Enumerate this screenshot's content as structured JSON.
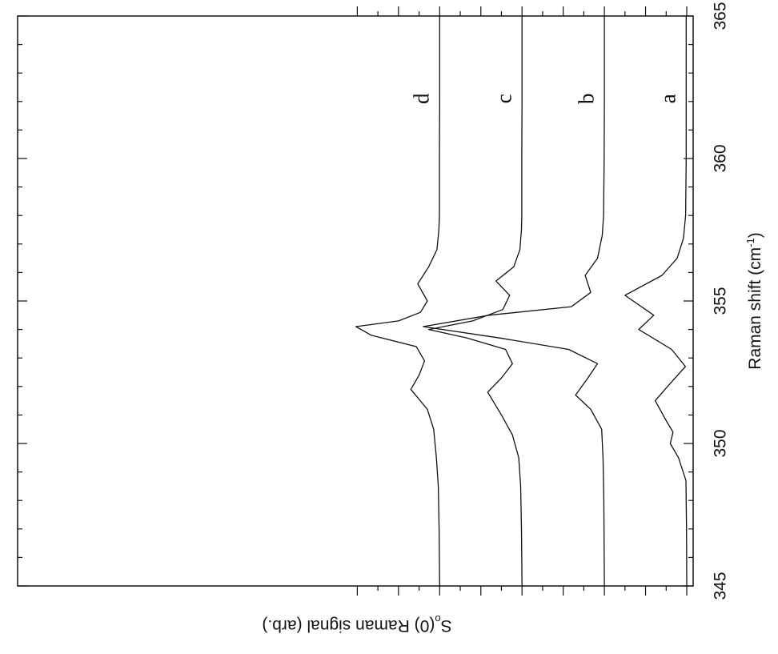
{
  "chart_data": {
    "type": "line",
    "xlabel": "Raman shift (cm-1)",
    "xlabel_main": "Raman shift (cm",
    "xlabel_sup": "-1",
    "xlabel_end": ")",
    "ylabel": "So(0) Raman signal (arb.)",
    "ylabel_main": "S",
    "ylabel_sub": "o",
    "ylabel_mid": "(0) Raman signal (arb.)",
    "xlim": [
      345,
      365
    ],
    "x_ticks": [
      "345",
      "350",
      "355",
      "360",
      "365"
    ],
    "grid": false,
    "orientation": "rotated 90 degrees clockwise",
    "series": [
      {
        "name": "a",
        "x": [
          345,
          347,
          348.7,
          349.5,
          350.0,
          350.4,
          350.8,
          351.5,
          352.0,
          352.7,
          353.3,
          354.0,
          354.5,
          355.2,
          355.9,
          356.5,
          357.2,
          358,
          360,
          362,
          365
        ],
        "y": [
          0,
          0.01,
          0.03,
          0.3,
          0.6,
          0.5,
          0.75,
          1.15,
          0.7,
          0.05,
          0.55,
          1.75,
          1.2,
          2.25,
          0.9,
          0.35,
          0.12,
          0.04,
          0.02,
          0.02,
          0.02
        ]
      },
      {
        "name": "b",
        "x": [
          345,
          348,
          349.5,
          350.5,
          351.2,
          351.7,
          352.3,
          352.8,
          353.3,
          353.7,
          354.1,
          354.5,
          354.8,
          355.3,
          355.9,
          356.5,
          357.3,
          358,
          360,
          362,
          365
        ],
        "y": [
          3.0,
          3.02,
          3.05,
          3.1,
          3.5,
          4.05,
          3.6,
          3.25,
          4.3,
          6.8,
          9.6,
          7.2,
          4.2,
          3.5,
          3.7,
          3.25,
          3.08,
          3.03,
          3.01,
          3.0,
          3.0
        ]
      },
      {
        "name": "c",
        "x": [
          345,
          347,
          348.5,
          349.5,
          350.3,
          351.0,
          351.8,
          352.3,
          352.8,
          353.3,
          353.7,
          354.0,
          354.3,
          354.7,
          355.2,
          355.7,
          356.2,
          356.8,
          357.5,
          358,
          360,
          362,
          365
        ],
        "y": [
          6.0,
          6.02,
          6.05,
          6.12,
          6.35,
          6.75,
          7.25,
          6.75,
          6.35,
          6.6,
          8.0,
          9.4,
          7.8,
          6.7,
          6.45,
          6.95,
          6.3,
          6.08,
          6.02,
          6.01,
          6.01,
          6.0,
          6.0
        ]
      },
      {
        "name": "d",
        "x": [
          345,
          347,
          348.5,
          349.5,
          350.5,
          351.2,
          351.9,
          352.4,
          352.9,
          353.4,
          353.8,
          354.1,
          354.3,
          354.6,
          355.0,
          355.6,
          356.2,
          356.8,
          357.5,
          358,
          360,
          362,
          365
        ],
        "y": [
          9.0,
          9.02,
          9.05,
          9.12,
          9.22,
          9.45,
          10.05,
          9.75,
          9.55,
          9.85,
          11.5,
          12.05,
          10.5,
          9.7,
          9.45,
          9.8,
          9.4,
          9.1,
          9.03,
          9.01,
          9.01,
          9.0,
          9.0
        ]
      }
    ]
  }
}
